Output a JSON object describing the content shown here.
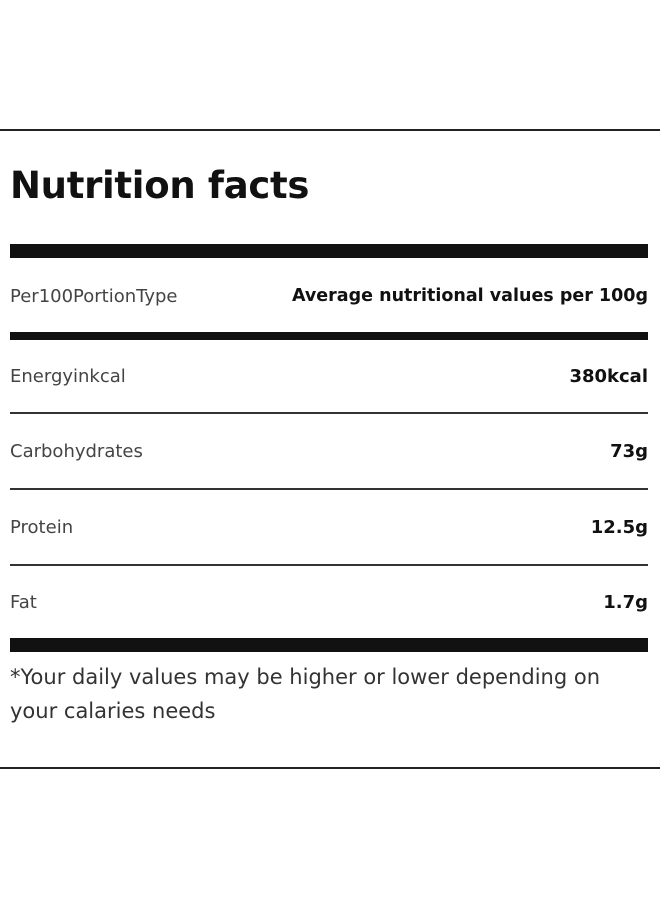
{
  "title": "Nutrition facts",
  "header_row": {
    "label": "Per100PortionType",
    "value": "Average nutritional values per 100g"
  },
  "rows": [
    {
      "label": "Energyinkcal",
      "value": "380kcal"
    },
    {
      "label": "Carbohydrates",
      "value": "73g"
    },
    {
      "label": "Protein",
      "value": "12.5g"
    },
    {
      "label": "Fat",
      "value": "1.7g"
    }
  ],
  "footnote": "*Your daily values may be higher or lower depending on your calaries needs"
}
